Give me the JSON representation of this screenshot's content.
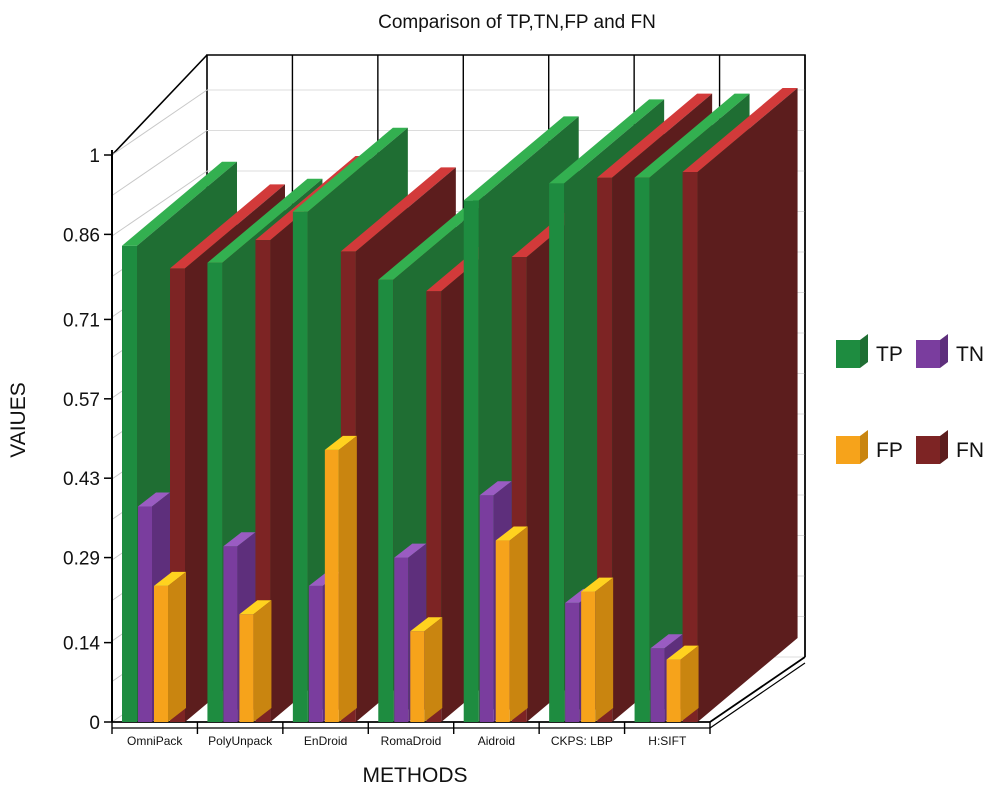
{
  "chart_data": {
    "type": "bar",
    "title": "Comparison of TP,TN,FP and FN",
    "xlabel": "METHODS",
    "ylabel": "VAIUES",
    "categories": [
      "OmniPack",
      "PolyUnpack",
      "EnDroid",
      "RomaDroid",
      "Aidroid",
      "CKPS: LBP",
      "H:SIFT"
    ],
    "yticks": [
      "0",
      "0.14",
      "0.29",
      "0.43",
      "0.57",
      "0.71",
      "0.86",
      "1"
    ],
    "ylim": [
      0,
      1
    ],
    "series": [
      {
        "name": "TP",
        "values": [
          0.84,
          0.81,
          0.9,
          0.78,
          0.92,
          0.95,
          0.96
        ]
      },
      {
        "name": "TN",
        "values": [
          0.38,
          0.31,
          0.24,
          0.29,
          0.4,
          0.21,
          0.13
        ]
      },
      {
        "name": "FP",
        "values": [
          0.24,
          0.19,
          0.48,
          0.16,
          0.32,
          0.23,
          0.11
        ]
      },
      {
        "name": "FN",
        "values": [
          0.8,
          0.85,
          0.83,
          0.76,
          0.82,
          0.96,
          0.97
        ]
      }
    ],
    "colors": {
      "TP": "#1e8c40",
      "TN": "#7a3d9e",
      "FP": "#f6a31b",
      "FN": "#7d2424",
      "TP_top": "#33b050",
      "TN_top": "#9a5cc2",
      "FP_top": "#ffd21f",
      "FN_top": "#d23a3a",
      "TP_side": "#1f6e33",
      "TN_side": "#5e2f7c",
      "FP_side": "#c98510",
      "FN_side": "#5c1d1d"
    },
    "legend": {
      "position": "right",
      "entries": [
        "TP",
        "TN",
        "FP",
        "FN"
      ]
    },
    "grid": true
  }
}
